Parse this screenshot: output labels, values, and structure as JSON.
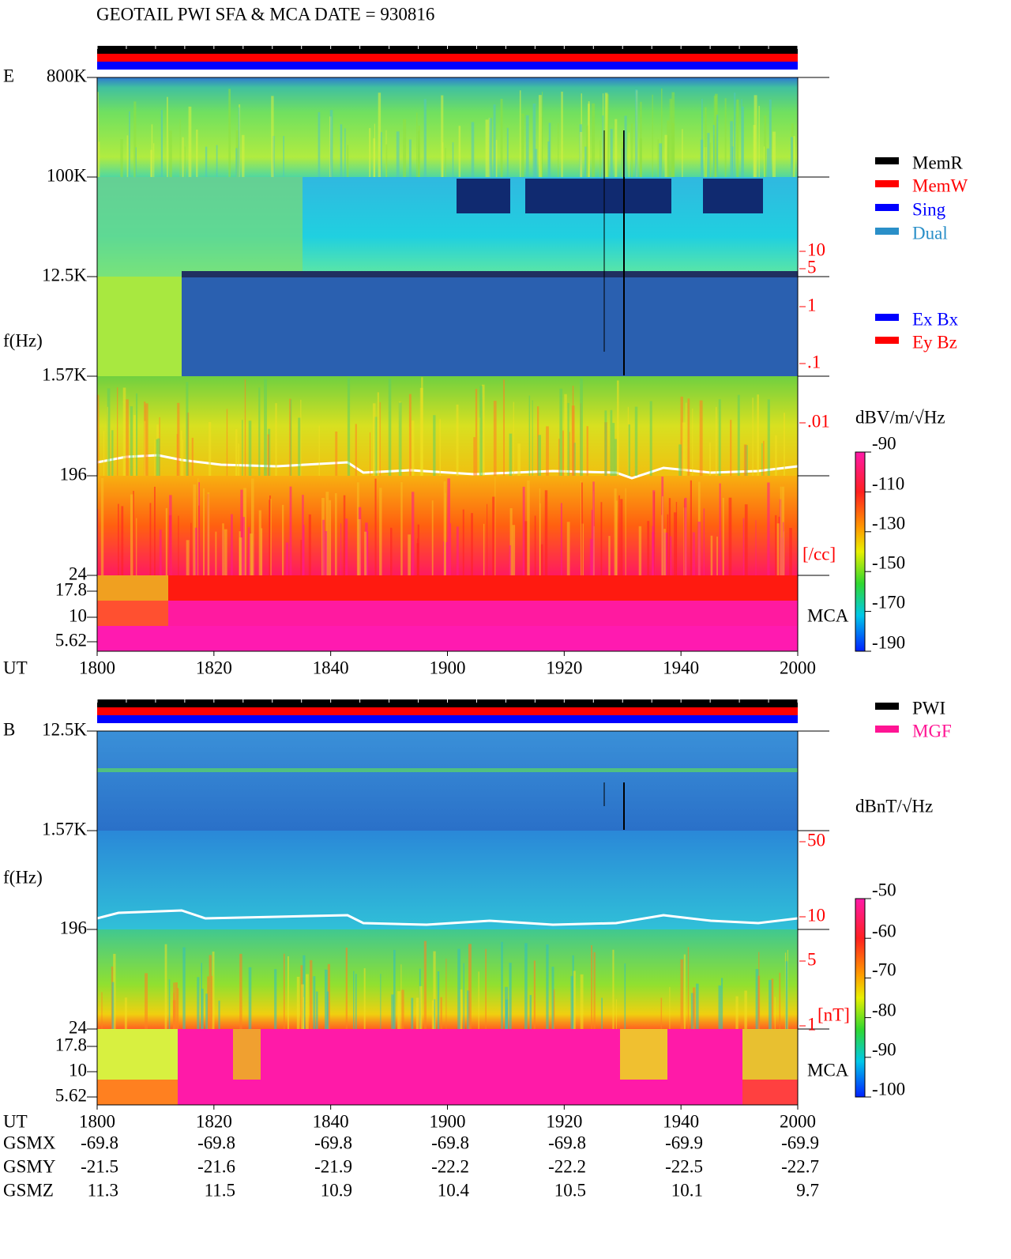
{
  "title": "GEOTAIL  PWI SFA & MCA   DATE = 930816",
  "panels": [
    {
      "component": "E",
      "freq_axis_label": "f(Hz)",
      "freq_ticks": [
        "800K",
        "100K",
        "12.5K",
        "1.57K",
        196,
        24,
        17.8,
        10,
        5.62
      ],
      "time_axis_label": "UT",
      "time_ticks": [
        1800,
        1820,
        1840,
        1900,
        1920,
        1940,
        2000
      ],
      "density_ticks": [
        "10",
        "5",
        "1",
        ".1",
        ".01"
      ],
      "density_unit": "[/cc]",
      "mca_label": "MCA",
      "colorbar_unit": "dBV/m/√Hz",
      "colorbar_ticks": [
        -90,
        -110,
        -130,
        -150,
        -170,
        -190
      ],
      "legends": [
        [
          {
            "label": "MemR",
            "color": "#000000"
          },
          {
            "label": "MemW",
            "color": "#ff0000"
          },
          {
            "label": "Sing",
            "color": "#0000ff"
          },
          {
            "label": "Dual",
            "color": "#2a8fc8"
          }
        ],
        [
          {
            "label": "Ex Bx",
            "color": "#0000ff"
          },
          {
            "label": "Ey Bz",
            "color": "#ff0000"
          }
        ]
      ]
    },
    {
      "component": "B",
      "freq_axis_label": "f(Hz)",
      "freq_ticks": [
        "12.5K",
        "1.57K",
        196,
        24,
        17.8,
        10,
        5.62
      ],
      "time_axis_label": "UT",
      "time_ticks": [
        1800,
        1820,
        1840,
        1900,
        1920,
        1940,
        2000
      ],
      "density_ticks": [
        "50",
        "10",
        "5",
        "1"
      ],
      "density_unit": "[nT]",
      "mca_label": "MCA",
      "colorbar_unit": "dBnT/√Hz",
      "colorbar_ticks": [
        -50,
        -60,
        -70,
        -80,
        -90,
        -100
      ],
      "legends": [
        [
          {
            "label": "PWI",
            "color": "#000000"
          },
          {
            "label": "MGF",
            "color": "#ff1493"
          }
        ]
      ]
    }
  ],
  "ephemeris": {
    "rows": [
      {
        "label": "GSMX",
        "values": [
          -69.8,
          -69.8,
          -69.8,
          -69.8,
          -69.8,
          -69.9,
          -69.9
        ]
      },
      {
        "label": "GSMY",
        "values": [
          -21.5,
          -21.6,
          -21.9,
          -22.2,
          -22.2,
          -22.5,
          -22.7
        ]
      },
      {
        "label": "GSMZ",
        "values": [
          11.3,
          11.5,
          10.9,
          10.4,
          10.5,
          10.1,
          9.7
        ]
      }
    ]
  }
}
